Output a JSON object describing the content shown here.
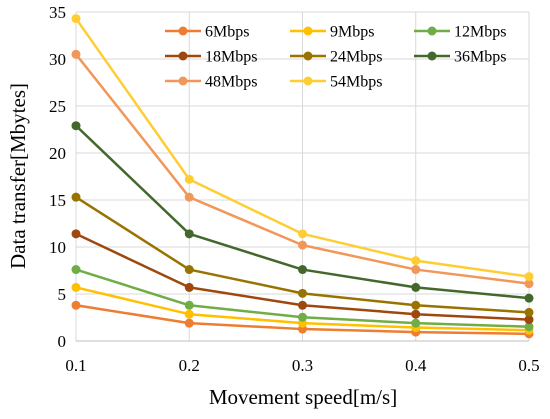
{
  "chart_data": {
    "type": "line",
    "title": "",
    "xlabel": "Movement speed[m/s]",
    "ylabel": "Data transfer[Mbytes]",
    "x": [
      0.1,
      0.2,
      0.3,
      0.4,
      0.5
    ],
    "x_tick_labels": [
      "0.1",
      "0.2",
      "0.3",
      "0.4",
      "0.5"
    ],
    "xlim": [
      0.1,
      0.5
    ],
    "ylim": [
      0,
      35
    ],
    "y_ticks": [
      0,
      5,
      10,
      15,
      20,
      25,
      30,
      35
    ],
    "y_tick_labels": [
      "0",
      "5",
      "10",
      "15",
      "20",
      "25",
      "30",
      "35"
    ],
    "grid": true,
    "legend_placement": "top-right",
    "series": [
      {
        "name": "6Mbps",
        "color": "#ED7D31",
        "values": [
          3.8,
          1.9,
          1.27,
          0.95,
          0.76
        ]
      },
      {
        "name": "9Mbps",
        "color": "#FFC000",
        "values": [
          5.7,
          2.85,
          1.9,
          1.43,
          1.14
        ]
      },
      {
        "name": "12Mbps",
        "color": "#70AD47",
        "values": [
          7.6,
          3.8,
          2.53,
          1.9,
          1.52
        ]
      },
      {
        "name": "18Mbps",
        "color": "#9E480E",
        "values": [
          11.4,
          5.7,
          3.8,
          2.85,
          2.28
        ]
      },
      {
        "name": "24Mbps",
        "color": "#997300",
        "values": [
          15.3,
          7.6,
          5.07,
          3.8,
          3.04
        ]
      },
      {
        "name": "36Mbps",
        "color": "#43682B",
        "values": [
          22.9,
          11.4,
          7.6,
          5.7,
          4.56
        ]
      },
      {
        "name": "48Mbps",
        "color": "#F1975A",
        "values": [
          30.5,
          15.3,
          10.2,
          7.6,
          6.1
        ]
      },
      {
        "name": "54Mbps",
        "color": "#FFCD33",
        "values": [
          34.3,
          17.2,
          11.4,
          8.55,
          6.85
        ]
      }
    ]
  }
}
